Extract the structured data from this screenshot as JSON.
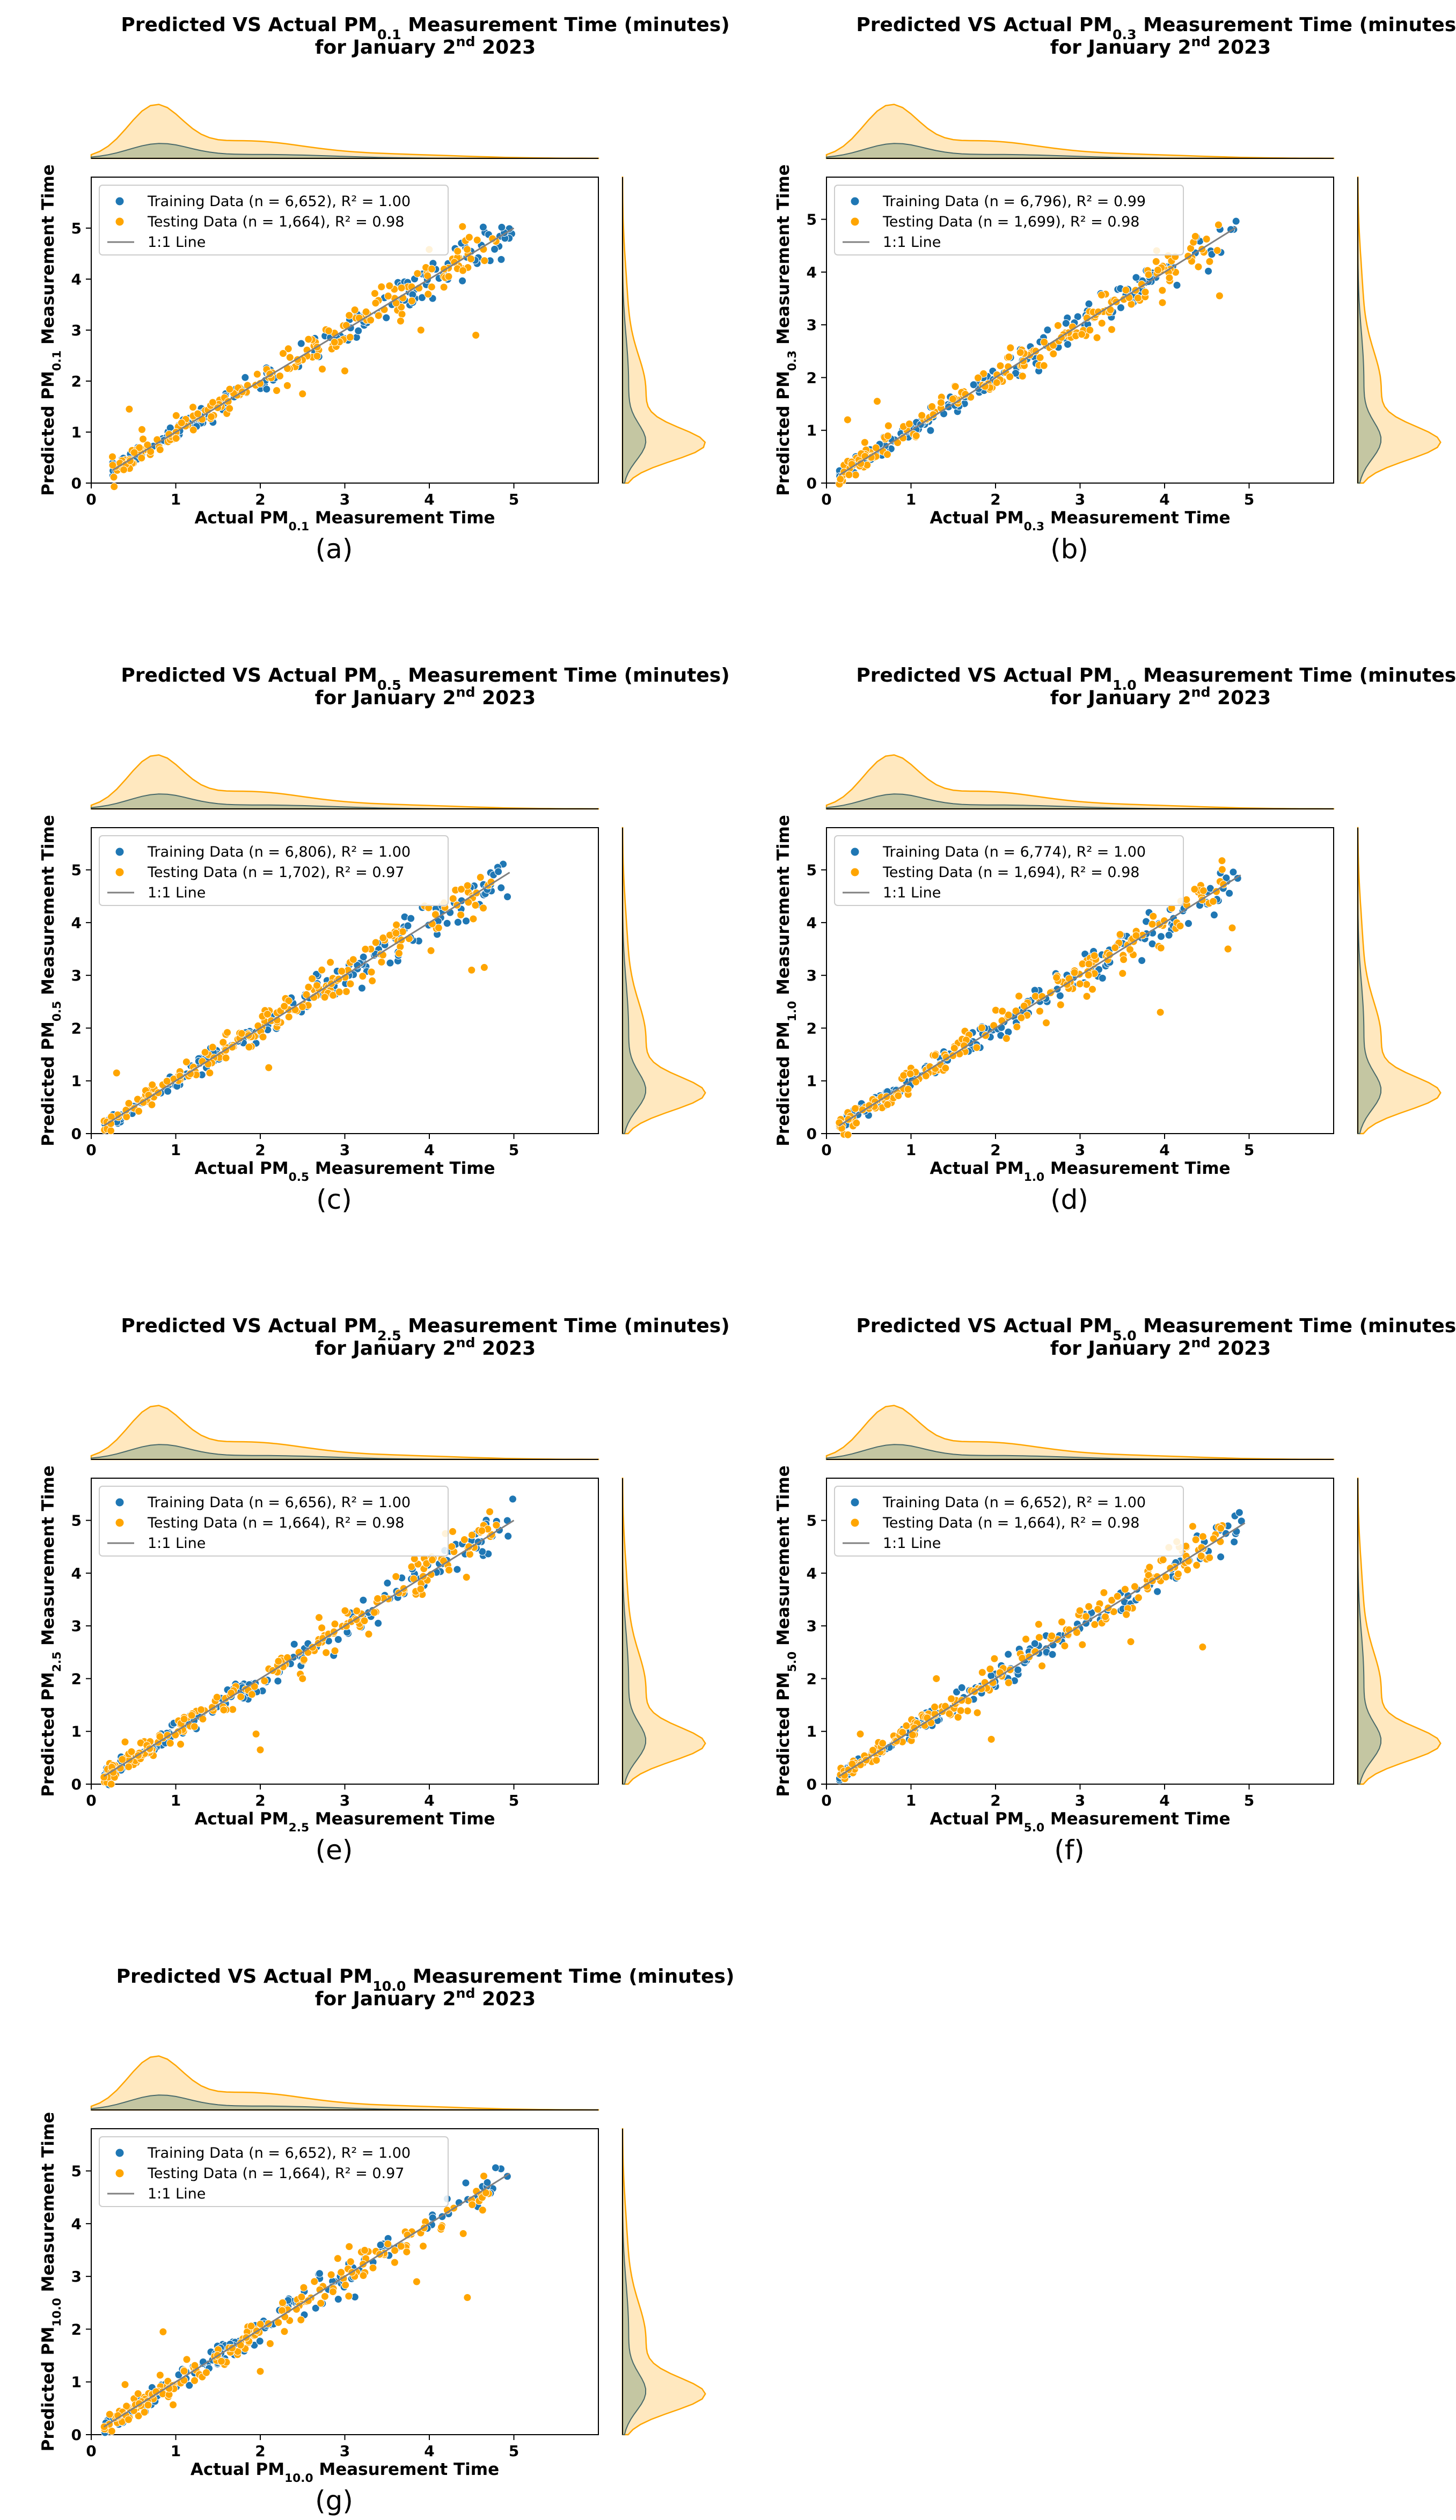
{
  "colors": {
    "training": "#1f77b4",
    "testing": "#ffa500",
    "line": "#808080",
    "kde_train_fill": "#93a98a",
    "kde_train_line": "#4a6a6a"
  },
  "chart_data": [
    {
      "type": "scatter",
      "panel": "(a)",
      "title_line1": "Predicted VS Actual PM",
      "title_sub": "0.1",
      "title_line1_suffix": " Measurement Time (minutes)",
      "title_line2": "for January 2",
      "title_sup": "nd",
      "title_line2_suffix": " 2023",
      "xlabel": "Actual PM",
      "xlabel_sub": "0.1",
      "xlabel_suffix": " Measurement Time",
      "ylabel": "Predicted PM",
      "ylabel_sub": "0.1",
      "ylabel_suffix": " Measurement Time",
      "xlim": [
        0,
        6
      ],
      "ylim": [
        0,
        6
      ],
      "xticks": [
        0,
        1,
        2,
        3,
        4,
        5
      ],
      "yticks": [
        0,
        1,
        2,
        3,
        4,
        5
      ],
      "one_to_one": [
        0.25,
        5.0
      ],
      "outliers": [
        [
          4.55,
          2.9
        ],
        [
          0.45,
          1.45
        ],
        [
          0.6,
          1.05
        ],
        [
          2.5,
          1.75
        ],
        [
          3.0,
          2.2
        ],
        [
          3.9,
          3.0
        ]
      ],
      "legend": [
        "Training Data (n = 6,652), R² = 1.00",
        "Testing Data (n = 1,664), R² = 0.98",
        "1:1 Line"
      ],
      "series": [
        {
          "name": "Training Data",
          "n": 6652,
          "r2": 1.0,
          "values_summary": "points along 1:1 line, x 0.3–5.0"
        },
        {
          "name": "Testing Data",
          "n": 1664,
          "r2": 0.98,
          "values_summary": "points along 1:1 line, x 0.3–4.9"
        }
      ]
    },
    {
      "type": "scatter",
      "panel": "(b)",
      "title_line1": "Predicted VS Actual PM",
      "title_sub": "0.3",
      "title_line1_suffix": " Measurement Time (minutes)",
      "title_line2": "for January 2",
      "title_sup": "nd",
      "title_line2_suffix": " 2023",
      "xlabel": "Actual PM",
      "xlabel_sub": "0.3",
      "xlabel_suffix": " Measurement Time",
      "ylabel": "Predicted PM",
      "ylabel_sub": "0.3",
      "ylabel_suffix": " Measurement Time",
      "xlim": [
        0,
        6
      ],
      "ylim": [
        0,
        5.8
      ],
      "xticks": [
        0,
        1,
        2,
        3,
        4,
        5
      ],
      "yticks": [
        0,
        1,
        2,
        3,
        4,
        5
      ],
      "one_to_one": [
        0.15,
        4.85
      ],
      "outliers": [
        [
          0.6,
          1.55
        ],
        [
          4.4,
          4.1
        ],
        [
          4.65,
          3.55
        ],
        [
          3.9,
          4.2
        ],
        [
          0.25,
          1.2
        ]
      ],
      "legend": [
        "Training Data (n = 6,796), R² = 0.99",
        "Testing Data (n = 1,699), R² = 0.98",
        "1:1 Line"
      ],
      "series": [
        {
          "name": "Training Data",
          "n": 6796,
          "r2": 0.99,
          "values_summary": "points along 1:1 line, x 0.2–4.8"
        },
        {
          "name": "Testing Data",
          "n": 1699,
          "r2": 0.98,
          "values_summary": "points along 1:1 line, x 0.2–4.0"
        }
      ]
    },
    {
      "type": "scatter",
      "panel": "(c)",
      "title_line1": "Predicted VS Actual PM",
      "title_sub": "0.5",
      "title_line1_suffix": " Measurement Time (minutes)",
      "title_line2": "for January 2",
      "title_sup": "nd",
      "title_line2_suffix": " 2023",
      "xlabel": "Actual PM",
      "xlabel_sub": "0.5",
      "xlabel_suffix": " Measurement Time",
      "ylabel": "Predicted PM",
      "ylabel_sub": "0.5",
      "ylabel_suffix": " Measurement Time",
      "xlim": [
        0,
        6
      ],
      "ylim": [
        0,
        5.8
      ],
      "xticks": [
        0,
        1,
        2,
        3,
        4,
        5
      ],
      "yticks": [
        0,
        1,
        2,
        3,
        4,
        5
      ],
      "one_to_one": [
        0.15,
        4.95
      ],
      "outliers": [
        [
          4.5,
          3.1
        ],
        [
          4.65,
          3.15
        ],
        [
          3.1,
          3.3
        ],
        [
          0.3,
          1.15
        ],
        [
          2.1,
          1.25
        ]
      ],
      "legend": [
        "Training Data (n = 6,806), R² = 1.00",
        "Testing Data (n = 1,702), R² = 0.97",
        "1:1 Line"
      ],
      "series": [
        {
          "name": "Training Data",
          "n": 6806,
          "r2": 1.0,
          "values_summary": "points along 1:1 line, x 0.2–5.0"
        },
        {
          "name": "Testing Data",
          "n": 1702,
          "r2": 0.97,
          "values_summary": "points along 1:1 line, x 0.2–4.8"
        }
      ]
    },
    {
      "type": "scatter",
      "panel": "(d)",
      "title_line1": "Predicted VS Actual PM",
      "title_sub": "1.0",
      "title_line1_suffix": " Measurement Time (minutes)",
      "title_line2": "for January 2",
      "title_sup": "nd",
      "title_line2_suffix": " 2023",
      "xlabel": "Actual PM",
      "xlabel_sub": "1.0",
      "xlabel_suffix": " Measurement Time",
      "ylabel": "Predicted PM",
      "ylabel_sub": "1.0",
      "ylabel_suffix": " Measurement Time",
      "xlim": [
        0,
        6
      ],
      "ylim": [
        0,
        5.8
      ],
      "xticks": [
        0,
        1,
        2,
        3,
        4,
        5
      ],
      "yticks": [
        0,
        1,
        2,
        3,
        4,
        5
      ],
      "one_to_one": [
        0.15,
        4.9
      ],
      "outliers": [
        [
          3.95,
          2.3
        ],
        [
          4.8,
          3.9
        ],
        [
          4.75,
          3.5
        ],
        [
          2.6,
          2.1
        ]
      ],
      "legend": [
        "Training Data (n = 6,774), R² = 1.00",
        "Testing Data (n = 1,694), R² = 0.98",
        "1:1 Line"
      ],
      "series": [
        {
          "name": "Training Data",
          "n": 6774,
          "r2": 1.0,
          "values_summary": "points along 1:1 line, x 0.2–4.9"
        },
        {
          "name": "Testing Data",
          "n": 1694,
          "r2": 0.98,
          "values_summary": "points along 1:1 line, x 0.2–4.8"
        }
      ]
    },
    {
      "type": "scatter",
      "panel": "(e)",
      "title_line1": "Predicted VS Actual PM",
      "title_sub": "2.5",
      "title_line1_suffix": " Measurement Time (minutes)",
      "title_line2": "for January 2",
      "title_sup": "nd",
      "title_line2_suffix": " 2023",
      "xlabel": "Actual PM",
      "xlabel_sub": "2.5",
      "xlabel_suffix": " Measurement Time",
      "ylabel": "Predicted PM",
      "ylabel_sub": "2.5",
      "ylabel_suffix": " Measurement Time",
      "xlim": [
        0,
        6
      ],
      "ylim": [
        0,
        5.8
      ],
      "xticks": [
        0,
        1,
        2,
        3,
        4,
        5
      ],
      "yticks": [
        0,
        1,
        2,
        3,
        4,
        5
      ],
      "one_to_one": [
        0.15,
        5.0
      ],
      "outliers": [
        [
          2.0,
          0.65
        ],
        [
          1.95,
          0.95
        ],
        [
          0.4,
          0.8
        ],
        [
          2.5,
          2.0
        ]
      ],
      "legend": [
        "Training Data (n = 6,656), R² = 1.00",
        "Testing Data (n = 1,664), R² = 0.98",
        "1:1 Line"
      ],
      "series": [
        {
          "name": "Training Data",
          "n": 6656,
          "r2": 1.0,
          "values_summary": "points along 1:1 line, x 0.2–5.0"
        },
        {
          "name": "Testing Data",
          "n": 1664,
          "r2": 0.98,
          "values_summary": "points along 1:1 line, x 0.2–4.8"
        }
      ]
    },
    {
      "type": "scatter",
      "panel": "(f)",
      "title_line1": "Predicted VS Actual PM",
      "title_sub": "5.0",
      "title_line1_suffix": " Measurement Time (minutes)",
      "title_line2": "for January 2",
      "title_sup": "nd",
      "title_line2_suffix": " 2023",
      "xlabel": "Actual PM",
      "xlabel_sub": "5.0",
      "xlabel_suffix": " Measurement Time",
      "ylabel": "Predicted PM",
      "ylabel_sub": "5.0",
      "ylabel_suffix": " Measurement Time",
      "xlim": [
        0,
        6
      ],
      "ylim": [
        0,
        5.8
      ],
      "xticks": [
        0,
        1,
        2,
        3,
        4,
        5
      ],
      "yticks": [
        0,
        1,
        2,
        3,
        4,
        5
      ],
      "one_to_one": [
        0.15,
        4.95
      ],
      "outliers": [
        [
          4.45,
          2.6
        ],
        [
          1.95,
          0.85
        ],
        [
          3.6,
          2.7
        ],
        [
          0.4,
          0.95
        ],
        [
          1.3,
          2.0
        ]
      ],
      "legend": [
        "Training Data (n = 6,652), R² = 1.00",
        "Testing Data (n = 1,664), R² = 0.98",
        "1:1 Line"
      ],
      "series": [
        {
          "name": "Training Data",
          "n": 6652,
          "r2": 1.0,
          "values_summary": "points along 1:1 line, x 0.2–5.0"
        },
        {
          "name": "Testing Data",
          "n": 1664,
          "r2": 0.98,
          "values_summary": "points along 1:1 line, x 0.2–4.8"
        }
      ]
    },
    {
      "type": "scatter",
      "panel": "(g)",
      "title_line1": "Predicted VS Actual PM",
      "title_sub": "10.0",
      "title_line1_suffix": " Measurement Time (minutes)",
      "title_line2": "for January 2",
      "title_sup": "nd",
      "title_line2_suffix": " 2023",
      "xlabel": "Actual PM",
      "xlabel_sub": "10.0",
      "xlabel_suffix": " Measurement Time",
      "ylabel": "Predicted PM",
      "ylabel_sub": "10.0",
      "ylabel_suffix": " Measurement Time",
      "xlim": [
        0,
        6
      ],
      "ylim": [
        0,
        5.8
      ],
      "xticks": [
        0,
        1,
        2,
        3,
        4,
        5
      ],
      "yticks": [
        0,
        1,
        2,
        3,
        4,
        5
      ],
      "one_to_one": [
        0.15,
        4.95
      ],
      "outliers": [
        [
          4.45,
          2.6
        ],
        [
          0.85,
          1.95
        ],
        [
          3.85,
          2.9
        ],
        [
          0.4,
          0.95
        ],
        [
          2.0,
          1.2
        ]
      ],
      "legend": [
        "Training Data (n = 6,652), R² = 1.00",
        "Testing Data (n = 1,664), R² = 0.97",
        "1:1 Line"
      ],
      "series": [
        {
          "name": "Training Data",
          "n": 6652,
          "r2": 1.0,
          "values_summary": "points along 1:1 line, x 0.2–5.0"
        },
        {
          "name": "Testing Data",
          "n": 1664,
          "r2": 0.97,
          "values_summary": "points along 1:1 line, x 0.2–4.8"
        }
      ]
    }
  ]
}
